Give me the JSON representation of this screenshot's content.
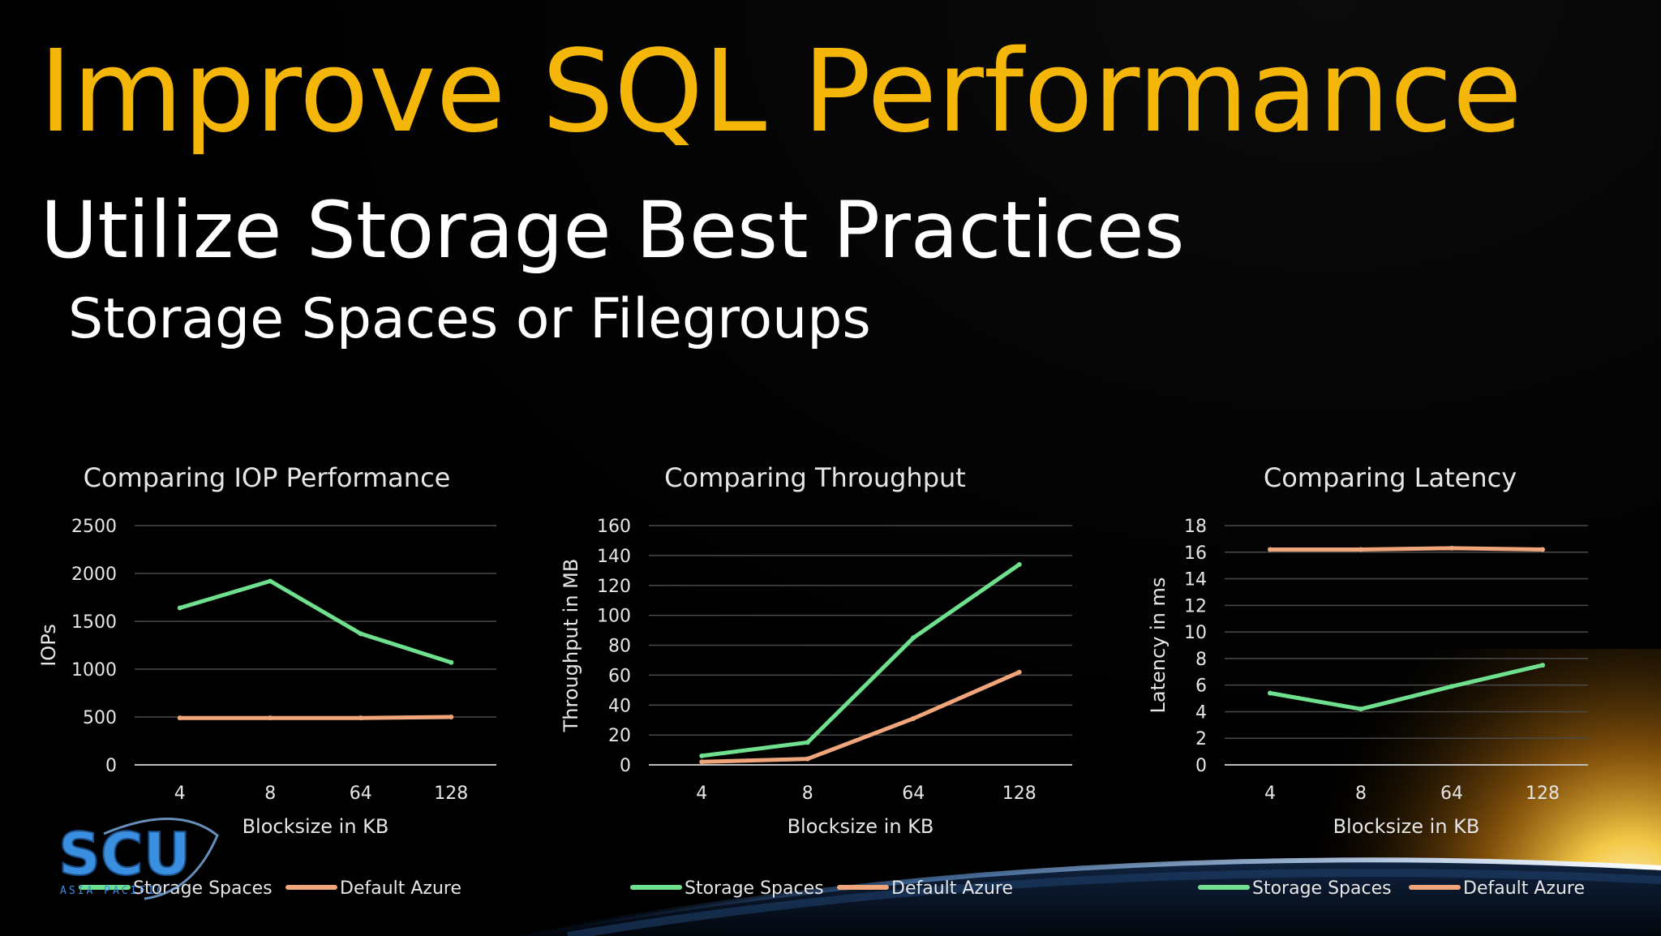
{
  "slide": {
    "title": "Improve SQL Performance",
    "subtitle": "Utilize Storage Best Practices",
    "subsubtitle": "Storage Spaces or Filegroups",
    "logo": {
      "text": "SCU",
      "tagline": "ASIA PACIFIC"
    }
  },
  "colors": {
    "title": "#f5b60a",
    "storage_spaces": "#6ee08e",
    "default_azure": "#f0a67a",
    "text": "#e6e6e6",
    "grid": "#4a4a4a"
  },
  "chart_data": [
    {
      "type": "line",
      "title": "Comparing IOP Performance",
      "xlabel": "Blocksize in KB",
      "ylabel": "IOPs",
      "categories": [
        "4",
        "8",
        "64",
        "128"
      ],
      "ylim": [
        0,
        2500
      ],
      "yticks": [
        "0",
        "500",
        "1000",
        "1500",
        "2000",
        "2500"
      ],
      "series": [
        {
          "name": "Storage Spaces",
          "values": [
            1640,
            1920,
            1370,
            1070
          ]
        },
        {
          "name": "Default Azure",
          "values": [
            490,
            490,
            490,
            500
          ]
        }
      ],
      "legend": "bottom",
      "grid": true
    },
    {
      "type": "line",
      "title": "Comparing Throughput",
      "xlabel": "Blocksize in KB",
      "ylabel": "Throughput in MB",
      "categories": [
        "4",
        "8",
        "64",
        "128"
      ],
      "ylim": [
        0,
        160
      ],
      "yticks": [
        "0",
        "20",
        "40",
        "60",
        "80",
        "100",
        "120",
        "140",
        "160"
      ],
      "series": [
        {
          "name": "Storage Spaces",
          "values": [
            6,
            15,
            85,
            134
          ]
        },
        {
          "name": "Default Azure",
          "values": [
            2,
            4,
            31,
            62
          ]
        }
      ],
      "legend": "bottom",
      "grid": true
    },
    {
      "type": "line",
      "title": "Comparing Latency",
      "xlabel": "Blocksize in KB",
      "ylabel": "Latency in ms",
      "categories": [
        "4",
        "8",
        "64",
        "128"
      ],
      "ylim": [
        0,
        18
      ],
      "yticks": [
        "0",
        "2",
        "4",
        "6",
        "8",
        "10",
        "12",
        "14",
        "16",
        "18"
      ],
      "series": [
        {
          "name": "Storage Spaces",
          "values": [
            5.4,
            4.2,
            5.9,
            7.5
          ]
        },
        {
          "name": "Default Azure",
          "values": [
            16.2,
            16.2,
            16.3,
            16.2
          ]
        }
      ],
      "legend": "bottom",
      "grid": true
    }
  ]
}
